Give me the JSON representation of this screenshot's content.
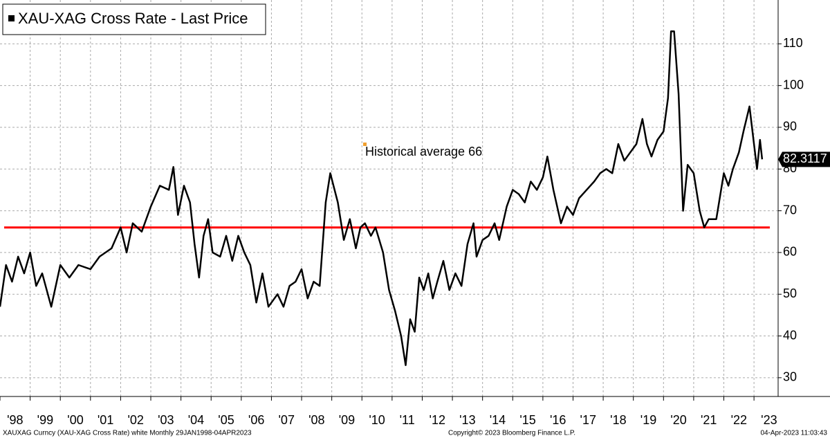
{
  "chart_data": {
    "type": "line",
    "title": "XAU-XAG Cross Rate - Last Price",
    "x": [
      1998.0,
      1998.2,
      1998.4,
      1998.6,
      1998.8,
      1999.0,
      1999.2,
      1999.4,
      1999.7,
      2000.0,
      2000.3,
      2000.6,
      2001.0,
      2001.3,
      2001.7,
      2002.0,
      2002.2,
      2002.4,
      2002.7,
      2003.0,
      2003.3,
      2003.6,
      2003.75,
      2003.9,
      2004.1,
      2004.3,
      2004.45,
      2004.6,
      2004.75,
      2004.9,
      2005.05,
      2005.3,
      2005.5,
      2005.7,
      2005.9,
      2006.1,
      2006.3,
      2006.5,
      2006.7,
      2006.9,
      2007.2,
      2007.4,
      2007.6,
      2007.8,
      2008.0,
      2008.2,
      2008.4,
      2008.6,
      2008.8,
      2008.95,
      2009.2,
      2009.4,
      2009.6,
      2009.8,
      2009.95,
      2010.1,
      2010.3,
      2010.45,
      2010.7,
      2010.9,
      2011.1,
      2011.3,
      2011.45,
      2011.6,
      2011.75,
      2011.9,
      2012.05,
      2012.2,
      2012.35,
      2012.5,
      2012.7,
      2012.9,
      2013.1,
      2013.3,
      2013.5,
      2013.7,
      2013.8,
      2014.0,
      2014.2,
      2014.4,
      2014.55,
      2014.8,
      2015.0,
      2015.2,
      2015.4,
      2015.6,
      2015.8,
      2016.0,
      2016.15,
      2016.35,
      2016.6,
      2016.8,
      2017.0,
      2017.2,
      2017.45,
      2017.7,
      2017.9,
      2018.1,
      2018.3,
      2018.5,
      2018.7,
      2018.9,
      2019.1,
      2019.3,
      2019.45,
      2019.6,
      2019.8,
      2020.0,
      2020.15,
      2020.25,
      2020.35,
      2020.5,
      2020.65,
      2020.8,
      2021.0,
      2021.2,
      2021.35,
      2021.5,
      2021.75,
      2022.0,
      2022.15,
      2022.3,
      2022.5,
      2022.65,
      2022.85,
      2023.0,
      2023.1,
      2023.2,
      2023.27
    ],
    "series": [
      {
        "name": "XAU-XAG Cross Rate - Last Price",
        "color": "#000000",
        "values": [
          47,
          57,
          53,
          59,
          55,
          60,
          52,
          55,
          47,
          57,
          54,
          57,
          56,
          59,
          61,
          66,
          60,
          67,
          65,
          71,
          76,
          75,
          80.5,
          69,
          76,
          72,
          62,
          54,
          64,
          68,
          60,
          59,
          64,
          58,
          64,
          60,
          57,
          48,
          55,
          47,
          50,
          47,
          52,
          53,
          56,
          49,
          53,
          52,
          72,
          79,
          72,
          63,
          68,
          61,
          66,
          67,
          64,
          66,
          60,
          51,
          46,
          40,
          33,
          44,
          41,
          54,
          51,
          55,
          49,
          53,
          58,
          51,
          55,
          52,
          62,
          67,
          59,
          63,
          64,
          67,
          63,
          71,
          75,
          74,
          72,
          77,
          75,
          78,
          83,
          75,
          67,
          71,
          69,
          73,
          75,
          77,
          79,
          80,
          79,
          86,
          82,
          84,
          86,
          92,
          86,
          83,
          87,
          89,
          97,
          113,
          113,
          98,
          70,
          81,
          79,
          70,
          66,
          68,
          68,
          79,
          76,
          80,
          84,
          89,
          95,
          86,
          80,
          87,
          82.3117
        ]
      }
    ],
    "hline": {
      "value": 66,
      "color": "#ff0000",
      "label": "Historical average 66"
    },
    "xlim": [
      1998,
      2023.8
    ],
    "xticks": [
      {
        "value": 1998,
        "label": "'98"
      },
      {
        "value": 1999,
        "label": "'99"
      },
      {
        "value": 2000,
        "label": "'00"
      },
      {
        "value": 2001,
        "label": "'01"
      },
      {
        "value": 2002,
        "label": "'02"
      },
      {
        "value": 2003,
        "label": "'03"
      },
      {
        "value": 2004,
        "label": "'04"
      },
      {
        "value": 2005,
        "label": "'05"
      },
      {
        "value": 2006,
        "label": "'06"
      },
      {
        "value": 2007,
        "label": "'07"
      },
      {
        "value": 2008,
        "label": "'08"
      },
      {
        "value": 2009,
        "label": "'09"
      },
      {
        "value": 2010,
        "label": "'10"
      },
      {
        "value": 2011,
        "label": "'11"
      },
      {
        "value": 2012,
        "label": "'12"
      },
      {
        "value": 2013,
        "label": "'13"
      },
      {
        "value": 2014,
        "label": "'14"
      },
      {
        "value": 2015,
        "label": "'15"
      },
      {
        "value": 2016,
        "label": "'16"
      },
      {
        "value": 2017,
        "label": "'17"
      },
      {
        "value": 2018,
        "label": "'18"
      },
      {
        "value": 2019,
        "label": "'19"
      },
      {
        "value": 2020,
        "label": "'20"
      },
      {
        "value": 2021,
        "label": "'21"
      },
      {
        "value": 2022,
        "label": "'22"
      },
      {
        "value": 2023,
        "label": "'23"
      }
    ],
    "ylim": [
      25.5,
      120.5
    ],
    "yticks": [
      30,
      40,
      50,
      60,
      70,
      80,
      90,
      100,
      110
    ],
    "grid": true,
    "footer_left": "XAUXAG Curncy (XAU-XAG Cross Rate) white  Monthly 29JAN1998-04APR2023",
    "footer_center": "Copyright© 2023 Bloomberg Finance L.P.",
    "footer_right": "04-Apr-2023 11:03:43"
  }
}
